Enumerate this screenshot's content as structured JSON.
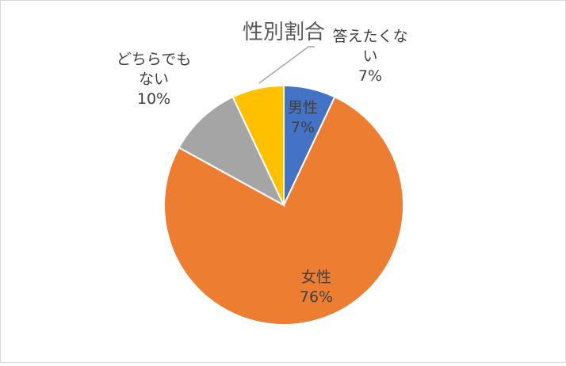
{
  "chart_data": {
    "type": "pie",
    "title": "性別割合",
    "start_angle_deg": 0,
    "direction": "clockwise",
    "slices": [
      {
        "label_lines": [
          "男性"
        ],
        "percent_label": "7%",
        "value": 7,
        "color": "#4472C4",
        "label_color": "#404040"
      },
      {
        "label_lines": [
          "女性"
        ],
        "percent_label": "76%",
        "value": 76,
        "color": "#ED7D31",
        "label_color": "#404040"
      },
      {
        "label_lines": [
          "どちらでも",
          "ない"
        ],
        "percent_label": "10%",
        "value": 10,
        "color": "#A5A5A5",
        "label_color": "#404040"
      },
      {
        "label_lines": [
          "答えたくな",
          "い"
        ],
        "percent_label": "7%",
        "value": 7,
        "color": "#FFC000",
        "label_color": "#404040"
      }
    ],
    "slice_border_color": "#ffffff",
    "leader_line_color": "#a6a6a6"
  }
}
